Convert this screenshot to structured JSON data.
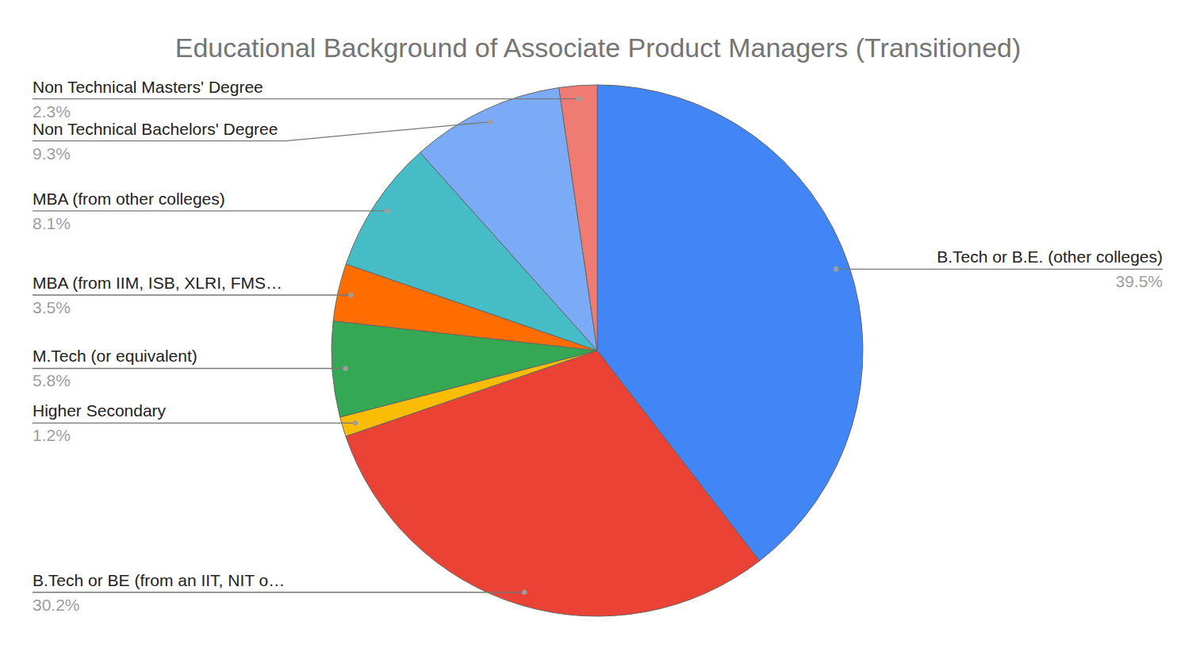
{
  "chart_data": {
    "type": "pie",
    "title": "Educational Background of Associate Product Managers (Transitioned)",
    "categories": [
      "B.Tech or B.E. (other colleges)",
      "B.Tech or BE (from an IIT, NIT o…",
      "Higher Secondary",
      "M.Tech (or equivalent)",
      "MBA (from IIM, ISB, XLRI, FMS…",
      "MBA (from other colleges)",
      "Non Technical Bachelors' Degree",
      "Non Technical Masters' Degree"
    ],
    "values": [
      39.5,
      30.2,
      1.2,
      5.8,
      3.5,
      8.1,
      9.3,
      2.3
    ],
    "value_labels": [
      "39.5%",
      "30.2%",
      "1.2%",
      "5.8%",
      "3.5%",
      "8.1%",
      "9.3%",
      "2.3%"
    ],
    "colors": [
      "#4285f4",
      "#ea4335",
      "#fbbc04",
      "#34a853",
      "#ff6d01",
      "#46bdc6",
      "#7baaf7",
      "#f07b72"
    ],
    "data_labels": true
  }
}
